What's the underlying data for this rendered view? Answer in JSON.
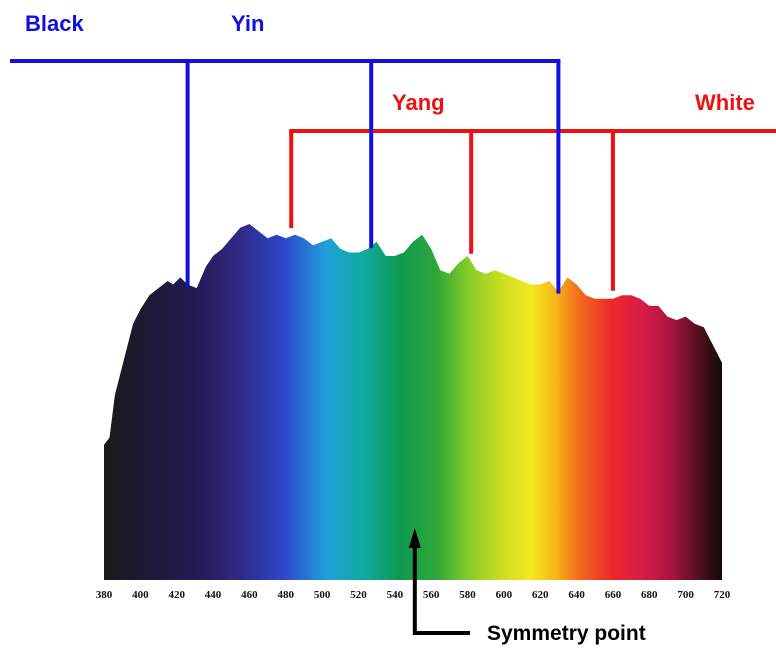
{
  "labels": {
    "black": "Black",
    "yin": "Yin",
    "yang": "Yang",
    "white": "White",
    "symmetry": "Symmetry point"
  },
  "colors": {
    "yin_group": "#1010e0",
    "yang_group": "#ee1111",
    "arrow": "#000000"
  },
  "axis": {
    "unit": "wavelength",
    "ticks": [
      "380",
      "400",
      "420",
      "440",
      "460",
      "480",
      "500",
      "520",
      "540",
      "560",
      "580",
      "600",
      "620",
      "640",
      "660",
      "680",
      "700",
      "720"
    ]
  },
  "yin_markers_nm": [
    426,
    527,
    630
  ],
  "yang_markers_nm": [
    483,
    582,
    660
  ],
  "symmetry_point_nm": 551,
  "spectrum": {
    "wavelength_nm": [
      380,
      383,
      386,
      390,
      396,
      400,
      405,
      410,
      415,
      418,
      422,
      426,
      431,
      436,
      440,
      445,
      450,
      455,
      460,
      465,
      470,
      475,
      480,
      485,
      490,
      495,
      500,
      505,
      510,
      515,
      520,
      525,
      530,
      535,
      540,
      545,
      550,
      555,
      560,
      565,
      570,
      575,
      580,
      585,
      590,
      595,
      600,
      605,
      610,
      615,
      620,
      625,
      630,
      635,
      640,
      645,
      650,
      655,
      660,
      665,
      670,
      675,
      680,
      685,
      690,
      695,
      700,
      705,
      710,
      715,
      720
    ],
    "relative_height": [
      0.38,
      0.4,
      0.52,
      0.6,
      0.72,
      0.76,
      0.8,
      0.82,
      0.84,
      0.83,
      0.85,
      0.83,
      0.82,
      0.88,
      0.91,
      0.93,
      0.96,
      0.99,
      1.0,
      0.98,
      0.96,
      0.97,
      0.96,
      0.97,
      0.96,
      0.94,
      0.95,
      0.96,
      0.93,
      0.92,
      0.92,
      0.93,
      0.95,
      0.91,
      0.91,
      0.92,
      0.95,
      0.97,
      0.93,
      0.87,
      0.86,
      0.89,
      0.91,
      0.87,
      0.86,
      0.87,
      0.86,
      0.85,
      0.84,
      0.83,
      0.83,
      0.84,
      0.81,
      0.85,
      0.83,
      0.8,
      0.79,
      0.79,
      0.79,
      0.8,
      0.8,
      0.79,
      0.77,
      0.77,
      0.74,
      0.73,
      0.74,
      0.72,
      0.71,
      0.66,
      0.61
    ]
  }
}
